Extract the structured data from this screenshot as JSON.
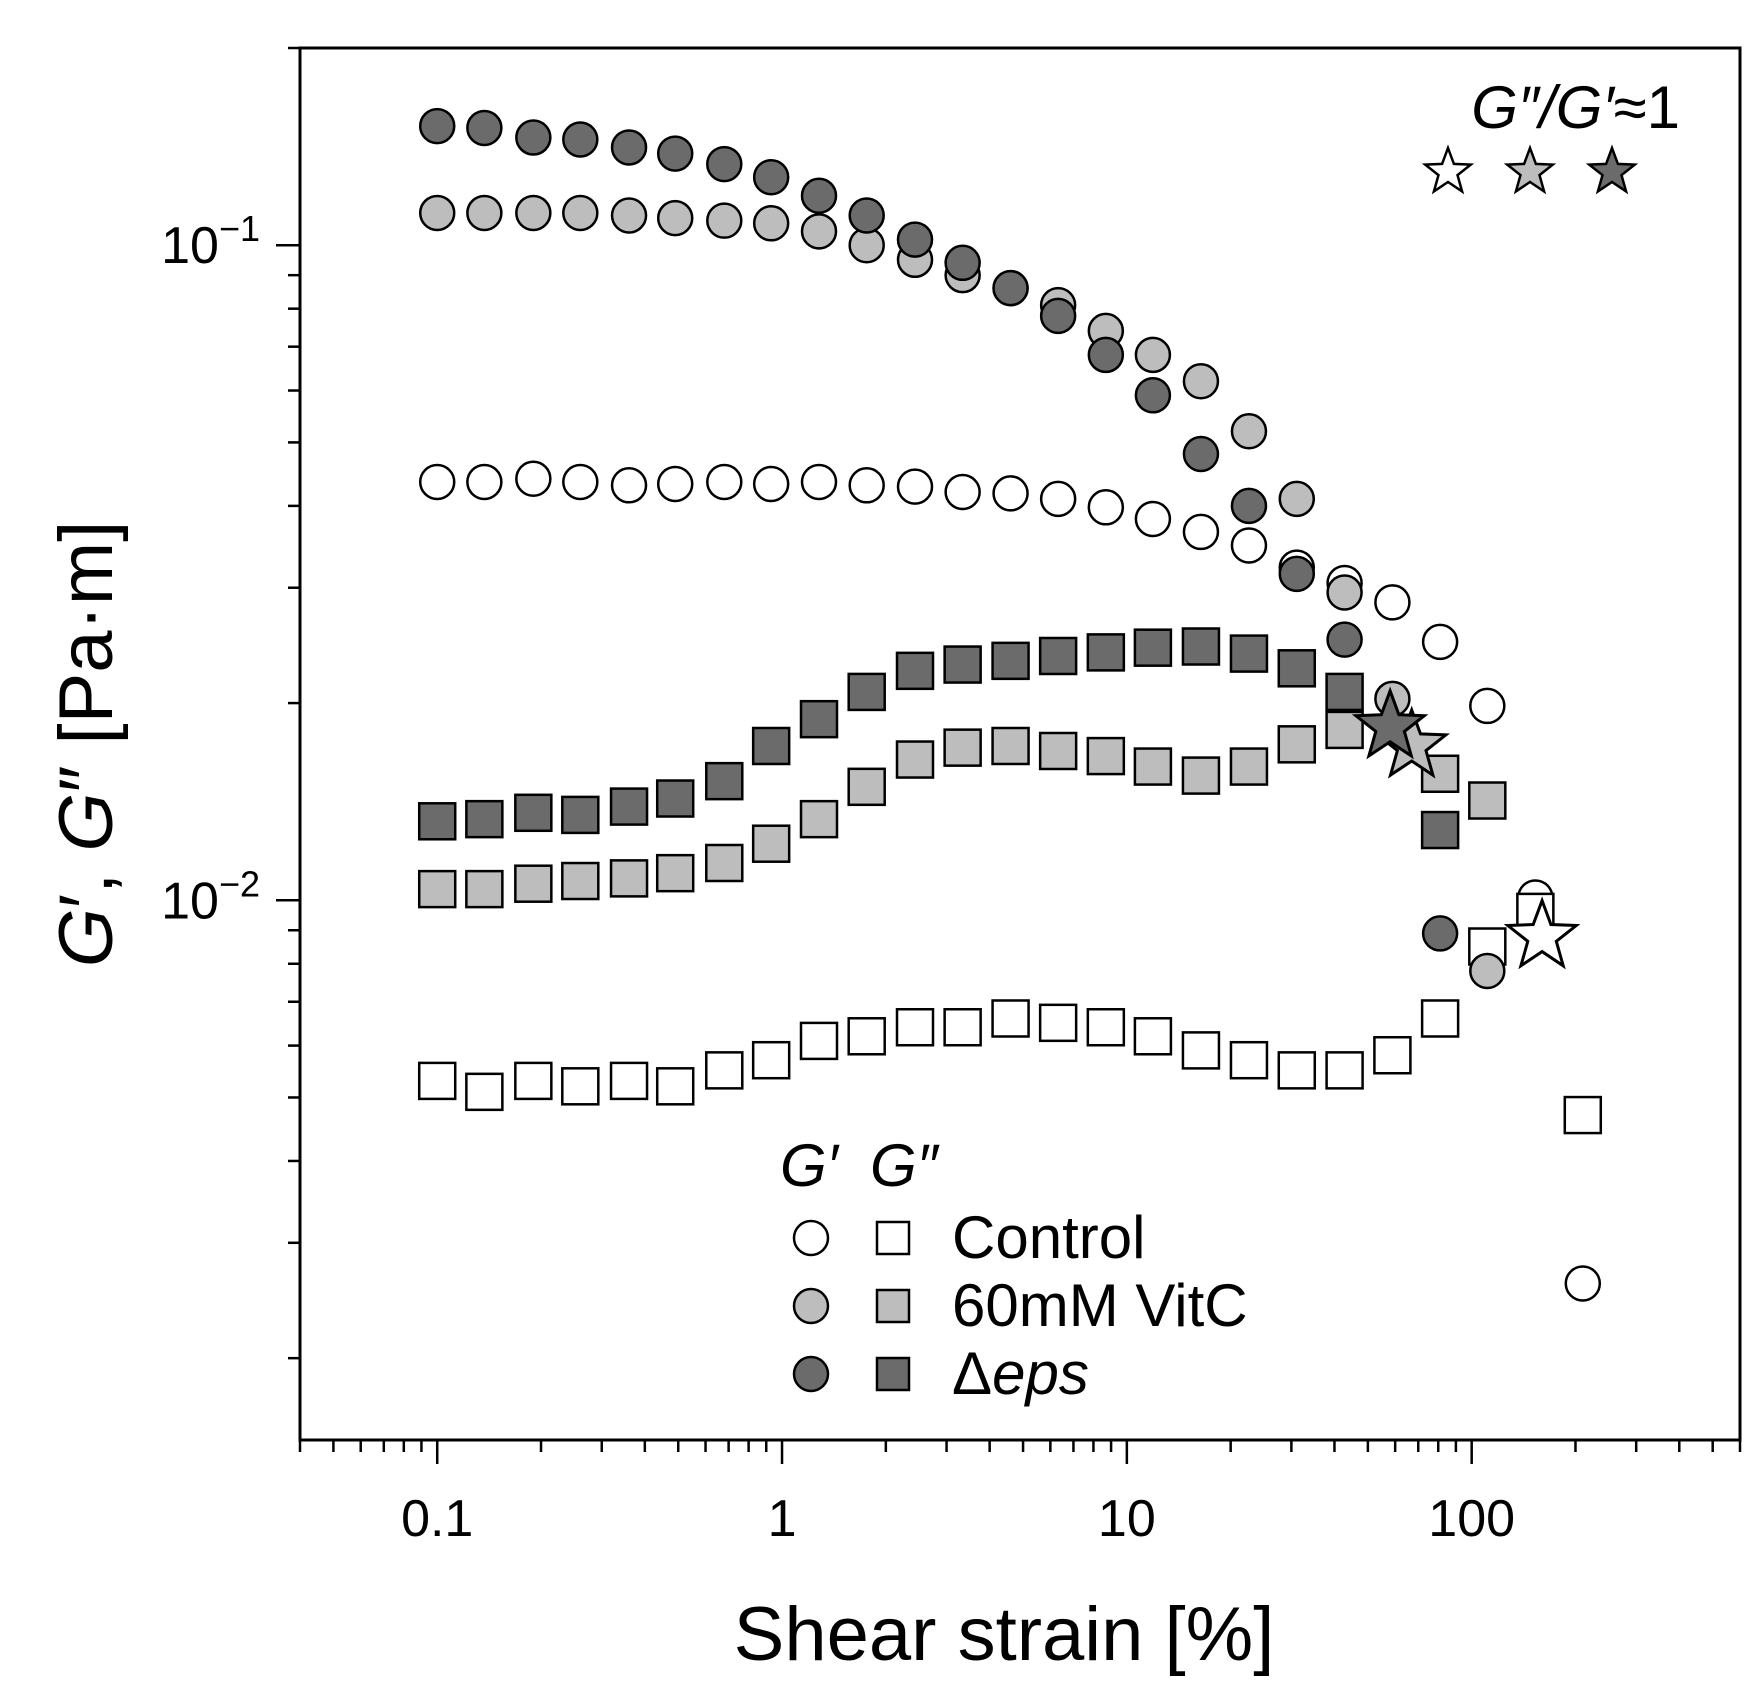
{
  "chart_data": {
    "type": "scatter",
    "xscale": "log",
    "yscale": "log",
    "xlim": [
      0.04,
      600
    ],
    "ylim": [
      0.0015,
      0.2
    ],
    "xlabel": "Shear strain [%]",
    "ylabel_parts": [
      "G",
      "′",
      ", ",
      "G",
      "″",
      " [Pa·m]"
    ],
    "x_ticks": [
      {
        "value": 0.1,
        "label": "0.1"
      },
      {
        "value": 1,
        "label": "1"
      },
      {
        "value": 10,
        "label": "10"
      },
      {
        "value": 100,
        "label": "100"
      }
    ],
    "y_ticks": [
      {
        "value": 0.1,
        "base": "10",
        "exp": "−1"
      },
      {
        "value": 0.01,
        "base": "10",
        "exp": "−2"
      }
    ],
    "colors": {
      "control": "#ffffff",
      "vitc": "#bdbdbd",
      "deps": "#6b6b6b",
      "stroke": "#000000"
    },
    "series": [
      {
        "name": "Control G′",
        "legend": "Control",
        "marker": "circle",
        "fill": "#ffffff",
        "x": [
          0.1,
          0.137,
          0.19,
          0.26,
          0.36,
          0.49,
          0.68,
          0.93,
          1.28,
          1.76,
          2.43,
          3.34,
          4.6,
          6.32,
          8.69,
          11.9,
          16.4,
          22.6,
          31.1,
          42.8,
          58.9,
          81,
          111,
          153,
          210
        ],
        "y": [
          0.0435,
          0.0435,
          0.044,
          0.0435,
          0.043,
          0.0432,
          0.0435,
          0.0432,
          0.0435,
          0.043,
          0.0428,
          0.042,
          0.0418,
          0.041,
          0.0398,
          0.0382,
          0.0365,
          0.0348,
          0.0322,
          0.0305,
          0.0285,
          0.0248,
          0.0198,
          0.0101,
          0.0026
        ]
      },
      {
        "name": "Control G″",
        "legend": "Control",
        "marker": "square",
        "fill": "#ffffff",
        "x": [
          0.1,
          0.137,
          0.19,
          0.26,
          0.36,
          0.49,
          0.68,
          0.93,
          1.28,
          1.76,
          2.43,
          3.34,
          4.6,
          6.32,
          8.69,
          11.9,
          16.4,
          22.6,
          31.1,
          42.8,
          58.9,
          81,
          111,
          153,
          210
        ],
        "y": [
          0.0053,
          0.0051,
          0.0053,
          0.0052,
          0.0053,
          0.0052,
          0.0055,
          0.0057,
          0.0061,
          0.0062,
          0.0064,
          0.0064,
          0.0066,
          0.0065,
          0.0064,
          0.0062,
          0.0059,
          0.0057,
          0.0055,
          0.0055,
          0.0058,
          0.0066,
          0.0085,
          0.0096,
          0.0047
        ]
      },
      {
        "name": "60mM VitC G′",
        "legend": "60mM VitC",
        "marker": "circle",
        "fill": "#bdbdbd",
        "x": [
          0.1,
          0.137,
          0.19,
          0.26,
          0.36,
          0.49,
          0.68,
          0.93,
          1.28,
          1.76,
          2.43,
          3.34,
          4.6,
          6.32,
          8.69,
          11.9,
          16.4,
          22.6,
          31.1,
          42.8,
          58.9,
          111
        ],
        "y": [
          0.112,
          0.112,
          0.112,
          0.112,
          0.111,
          0.11,
          0.109,
          0.108,
          0.105,
          0.1,
          0.095,
          0.09,
          0.086,
          0.081,
          0.074,
          0.068,
          0.062,
          0.052,
          0.041,
          0.0295,
          0.0203,
          0.0078
        ]
      },
      {
        "name": "60mM VitC G″",
        "legend": "60mM VitC",
        "marker": "square",
        "fill": "#bdbdbd",
        "x": [
          0.1,
          0.137,
          0.19,
          0.26,
          0.36,
          0.49,
          0.68,
          0.93,
          1.28,
          1.76,
          2.43,
          3.34,
          4.6,
          6.32,
          8.69,
          11.9,
          16.4,
          22.6,
          31.1,
          42.8,
          81,
          111
        ],
        "y": [
          0.0104,
          0.0104,
          0.0106,
          0.0107,
          0.0108,
          0.011,
          0.0114,
          0.0122,
          0.0133,
          0.0149,
          0.0164,
          0.0171,
          0.0172,
          0.0169,
          0.0166,
          0.016,
          0.0155,
          0.016,
          0.0173,
          0.0182,
          0.0156,
          0.0142
        ]
      },
      {
        "name": "Δeps G′",
        "legend": "Δeps",
        "marker": "circle",
        "fill": "#6b6b6b",
        "x": [
          0.1,
          0.137,
          0.19,
          0.26,
          0.36,
          0.49,
          0.68,
          0.93,
          1.28,
          1.76,
          2.43,
          3.34,
          4.6,
          6.32,
          8.69,
          11.9,
          16.4,
          22.6,
          31.1,
          42.8,
          81
        ],
        "y": [
          0.152,
          0.151,
          0.146,
          0.145,
          0.141,
          0.138,
          0.133,
          0.127,
          0.119,
          0.111,
          0.102,
          0.094,
          0.086,
          0.078,
          0.068,
          0.059,
          0.048,
          0.04,
          0.0315,
          0.025,
          0.0089
        ]
      },
      {
        "name": "Δeps G″",
        "legend": "Δeps",
        "marker": "square",
        "fill": "#6b6b6b",
        "x": [
          0.1,
          0.137,
          0.19,
          0.26,
          0.36,
          0.49,
          0.68,
          0.93,
          1.28,
          1.76,
          2.43,
          3.34,
          4.6,
          6.32,
          8.69,
          11.9,
          16.4,
          22.6,
          31.1,
          42.8,
          81
        ],
        "y": [
          0.0132,
          0.0133,
          0.0136,
          0.0135,
          0.0139,
          0.0143,
          0.0152,
          0.0172,
          0.0189,
          0.0208,
          0.0224,
          0.0229,
          0.0232,
          0.0236,
          0.0239,
          0.0243,
          0.0244,
          0.0238,
          0.0226,
          0.0208,
          0.0128
        ]
      }
    ],
    "crossover_points": [
      {
        "name": "Control crossover",
        "x": 160,
        "y": 0.0088,
        "fill": "#ffffff"
      },
      {
        "name": "60mM VitC crossover",
        "x": 67,
        "y": 0.0172,
        "fill": "#bdbdbd"
      },
      {
        "name": "Δeps crossover",
        "x": 58,
        "y": 0.0184,
        "fill": "#6b6b6b"
      }
    ],
    "annotation": {
      "text_g2": "G″/G′",
      "text_approx": "≈1",
      "star_fills": [
        "#ffffff",
        "#bdbdbd",
        "#6b6b6b"
      ]
    },
    "legend": {
      "header_g1": "G′",
      "header_g2": "G″",
      "entries": [
        {
          "label": "Control",
          "fill": "#ffffff"
        },
        {
          "label": "60mM VitC",
          "fill": "#bdbdbd"
        },
        {
          "label_prefix": "Δ",
          "label_italic": "eps",
          "fill": "#6b6b6b"
        }
      ]
    }
  }
}
